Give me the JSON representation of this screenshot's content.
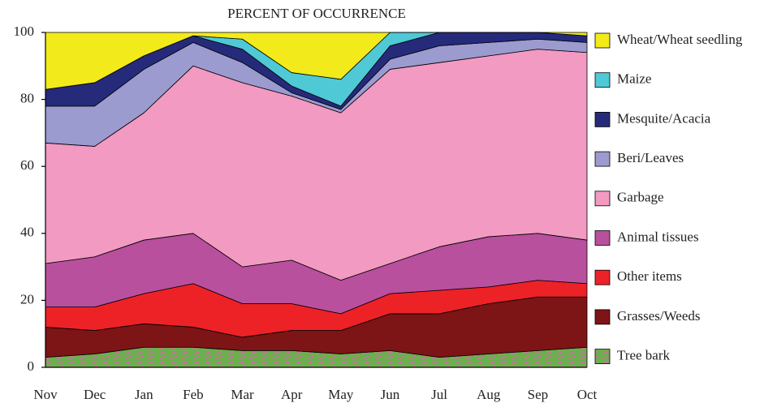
{
  "chart_data": {
    "type": "stacked-area",
    "title": "PERCENT OF OCCURRENCE",
    "categories": [
      "Nov",
      "Dec",
      "Jan",
      "Feb",
      "Mar",
      "Apr",
      "May",
      "Jun",
      "Jul",
      "Aug",
      "Sep",
      "Oct"
    ],
    "ylim": [
      0,
      100
    ],
    "yticks": [
      0,
      20,
      40,
      60,
      80,
      100
    ],
    "grid": false,
    "legend": "right",
    "series": [
      {
        "name": "Tree bark",
        "color": "#6ab04c",
        "hatch": "#d36aa8",
        "values": [
          3,
          4,
          6,
          6,
          5,
          5,
          4,
          5,
          3,
          4,
          5,
          6
        ]
      },
      {
        "name": "Grasses/Weeds",
        "color": "#7d1416",
        "values": [
          9,
          7,
          7,
          6,
          4,
          6,
          7,
          11,
          13,
          15,
          16,
          15
        ]
      },
      {
        "name": "Other items",
        "color": "#ec2227",
        "values": [
          6,
          7,
          9,
          13,
          10,
          8,
          5,
          6,
          7,
          5,
          5,
          4
        ]
      },
      {
        "name": "Animal tissues",
        "color": "#b8509e",
        "values": [
          13,
          15,
          16,
          15,
          11,
          13,
          10,
          9,
          13,
          15,
          14,
          13
        ]
      },
      {
        "name": "Garbage",
        "color": "#f29ac2",
        "values": [
          36,
          33,
          38,
          50,
          55,
          49,
          50,
          58,
          55,
          54,
          55,
          56
        ]
      },
      {
        "name": "Beri/Leaves",
        "color": "#9b9bd0",
        "values": [
          11,
          12,
          13,
          7,
          6,
          1,
          1,
          3,
          5,
          4,
          3,
          3
        ]
      },
      {
        "name": "Mesquite/Acacia",
        "color": "#262a7a",
        "values": [
          5,
          7,
          4,
          2,
          4,
          2,
          1,
          4,
          4,
          3,
          2,
          2
        ]
      },
      {
        "name": "Maize",
        "color": "#4fc9d6",
        "values": [
          0,
          0,
          0,
          0,
          3,
          4,
          8,
          4,
          0,
          0,
          0,
          0
        ]
      },
      {
        "name": "Wheat/Wheat seedling",
        "color": "#f2ea1a",
        "values": [
          17,
          15,
          7,
          1,
          2,
          12,
          14,
          0,
          0,
          0,
          0,
          1
        ]
      }
    ]
  }
}
